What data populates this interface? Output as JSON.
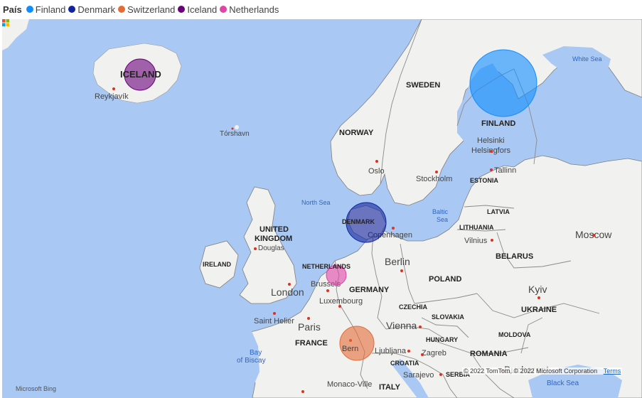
{
  "legend": {
    "title": "País",
    "items": [
      {
        "label": "Finland",
        "color": "#118dff"
      },
      {
        "label": "Denmark",
        "color": "#12239e"
      },
      {
        "label": "Switzerland",
        "color": "#e66c37"
      },
      {
        "label": "Iceland",
        "color": "#6b007b"
      },
      {
        "label": "Netherlands",
        "color": "#e044a7"
      }
    ]
  },
  "map": {
    "countries": {
      "iceland": "ICELAND",
      "sweden": "SWEDEN",
      "finland": "FINLAND",
      "norway": "NORWAY",
      "estonia": "ESTONIA",
      "latvia": "LATVIA",
      "lithuania": "LITHUANIA",
      "denmark": "DENMARK",
      "uk1": "UNITED",
      "uk2": "KINGDOM",
      "ireland": "IRELAND",
      "netherlands": "NETHERLANDS",
      "belarus": "BELARUS",
      "germany": "GERMANY",
      "poland": "POLAND",
      "czechia": "CZECHIA",
      "slovakia": "SLOVAKIA",
      "ukraine": "UKRAINE",
      "hungary": "HUNGARY",
      "moldova": "MOLDOVA",
      "france": "FRANCE",
      "croatia": "CROATIA",
      "romania": "ROMANIA",
      "serbia": "SERBIA",
      "italy": "ITALY"
    },
    "cities": {
      "reykjavik": "Reykjavík",
      "torshavn": "Tórshavn",
      "helsinki1": "Helsinki",
      "helsinki2": "Helsingfors",
      "tallinn": "Tallinn",
      "oslo": "Oslo",
      "stockholm": "Stockholm",
      "copenhagen": "Copenhagen",
      "vilnius": "Vilnius",
      "douglas": "Douglas",
      "brussels": "Brussels",
      "luxembourg": "Luxembourg",
      "saint_helier": "Saint Helier",
      "ljubljana": "Ljubljana",
      "zagreb": "Zagreb",
      "sarajevo": "Sarajevo",
      "monaco": "Monaco-Ville",
      "bern": "Bern"
    },
    "big_cities": {
      "moscow": "Moscow",
      "berlin": "Berlin",
      "london": "London",
      "kyiv": "Kyiv",
      "paris": "Paris",
      "vienna": "Vienna",
      "bucharest": "Bucharest"
    },
    "seas": {
      "white_sea": "White Sea",
      "north_sea": "North Sea",
      "baltic1": "Baltic",
      "baltic2": "Sea",
      "bay1": "Bay",
      "bay2": "of Biscay",
      "black_sea": "Black Sea"
    }
  },
  "footer": {
    "bing": "Microsoft Bing",
    "copyright": "© 2022 TomTom, © 2022 Microsoft Corporation",
    "terms": "Terms"
  }
}
